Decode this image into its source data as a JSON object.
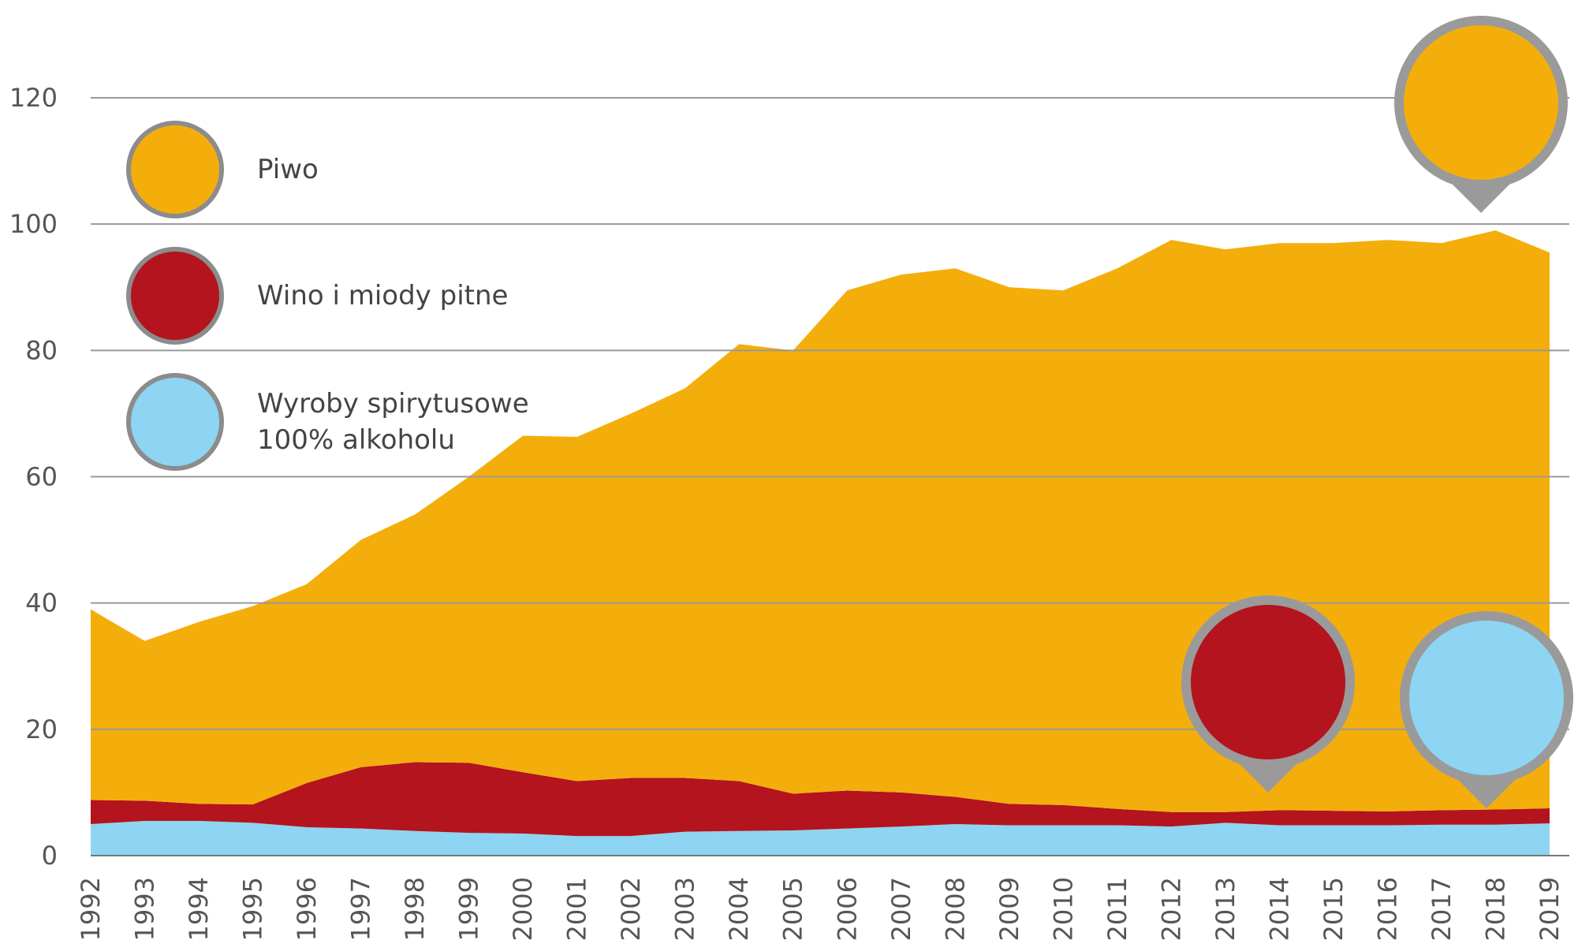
{
  "chart_data": {
    "type": "stacked_area",
    "categories": [
      "1992",
      "1993",
      "1994",
      "1995",
      "1996",
      "1997",
      "1998",
      "1999",
      "2000",
      "2001",
      "2002",
      "2003",
      "2004",
      "2005",
      "2006",
      "2007",
      "2008",
      "2009",
      "2010",
      "2011",
      "2012",
      "2013",
      "2014",
      "2015",
      "2016",
      "2017",
      "2018",
      "2019"
    ],
    "series": [
      {
        "name": "Wyroby spirytusowe 100% alkoholu",
        "color": "#8dd5f2",
        "values": [
          5.0,
          5.5,
          5.5,
          5.2,
          4.5,
          4.3,
          3.9,
          3.6,
          3.5,
          3.1,
          3.1,
          3.8,
          3.9,
          4.0,
          4.3,
          4.6,
          5.0,
          4.8,
          4.8,
          4.8,
          4.6,
          5.2,
          4.8,
          4.8,
          4.8,
          4.9,
          4.9,
          5.1
        ]
      },
      {
        "name": "Wino i miody pitne",
        "color": "#b3141d",
        "values": [
          3.8,
          3.2,
          2.7,
          2.9,
          7.0,
          9.7,
          10.9,
          11.1,
          9.7,
          8.7,
          9.2,
          8.5,
          7.9,
          5.8,
          6.0,
          5.4,
          4.3,
          3.4,
          3.2,
          2.6,
          2.3,
          1.7,
          2.4,
          2.3,
          2.2,
          2.3,
          2.4,
          2.4
        ]
      },
      {
        "name": "Piwo",
        "color": "#f4ae0c",
        "values": [
          30.2,
          25.3,
          28.8,
          31.4,
          31.5,
          36.0,
          39.2,
          45.3,
          53.3,
          54.5,
          57.7,
          61.7,
          69.2,
          70.2,
          79.2,
          82.0,
          83.7,
          81.8,
          81.5,
          85.6,
          90.6,
          89.1,
          89.8,
          89.9,
          90.5,
          89.8,
          91.7,
          88.0
        ]
      }
    ],
    "ylim": [
      0,
      120
    ],
    "yticks": [
      0,
      20,
      40,
      60,
      80,
      100,
      120
    ],
    "grid": true
  }
}
